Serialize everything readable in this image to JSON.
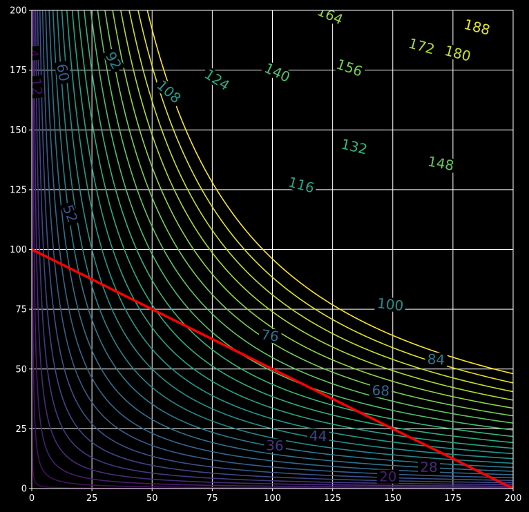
{
  "chart_data": {
    "type": "contour",
    "title": "",
    "xlabel": "",
    "ylabel": "",
    "xlim": [
      0,
      200
    ],
    "ylim": [
      0,
      200
    ],
    "grid": true,
    "colormap": "viridis",
    "function": "2*sqrt(x*y)",
    "background": "#000000",
    "grid_color": "#ffffff",
    "x_ticks": [
      "0",
      "25",
      "50",
      "75",
      "100",
      "125",
      "150",
      "175",
      "200"
    ],
    "y_ticks": [
      "0",
      "25",
      "50",
      "75",
      "100",
      "125",
      "150",
      "175",
      "200"
    ],
    "levels": [
      4,
      12,
      20,
      28,
      36,
      44,
      52,
      60,
      68,
      76,
      84,
      92,
      100,
      108,
      116,
      124,
      132,
      140,
      148,
      156,
      164,
      172,
      180,
      188,
      196
    ],
    "level_range": [
      4,
      196
    ],
    "contour_labels": [
      {
        "text": "4",
        "x": 0.5,
        "y": 182
      },
      {
        "text": "12",
        "x": 2,
        "y": 168
      },
      {
        "text": "20",
        "x": 148,
        "y": 5
      },
      {
        "text": "28",
        "x": 165,
        "y": 9
      },
      {
        "text": "36",
        "x": 101,
        "y": 18
      },
      {
        "text": "44",
        "x": 119,
        "y": 22
      },
      {
        "text": "52",
        "x": 16,
        "y": 115
      },
      {
        "text": "60",
        "x": 13,
        "y": 174
      },
      {
        "text": "68",
        "x": 145,
        "y": 41
      },
      {
        "text": "76",
        "x": 99,
        "y": 64
      },
      {
        "text": "84",
        "x": 168,
        "y": 54
      },
      {
        "text": "92",
        "x": 34,
        "y": 179
      },
      {
        "text": "100",
        "x": 149,
        "y": 77
      },
      {
        "text": "108",
        "x": 57,
        "y": 166
      },
      {
        "text": "116",
        "x": 112,
        "y": 127
      },
      {
        "text": "124",
        "x": 77,
        "y": 171
      },
      {
        "text": "132",
        "x": 134,
        "y": 143
      },
      {
        "text": "140",
        "x": 102,
        "y": 174
      },
      {
        "text": "148",
        "x": 170,
        "y": 136
      },
      {
        "text": "156",
        "x": 132,
        "y": 176
      },
      {
        "text": "164",
        "x": 124,
        "y": 198
      },
      {
        "text": "172",
        "x": 162,
        "y": 185
      },
      {
        "text": "180",
        "x": 177,
        "y": 182
      },
      {
        "text": "188",
        "x": 185,
        "y": 193
      }
    ],
    "series": [
      {
        "type": "line",
        "color": "#ff0000",
        "x": [
          0,
          200
        ],
        "y": [
          100,
          0
        ]
      }
    ]
  }
}
